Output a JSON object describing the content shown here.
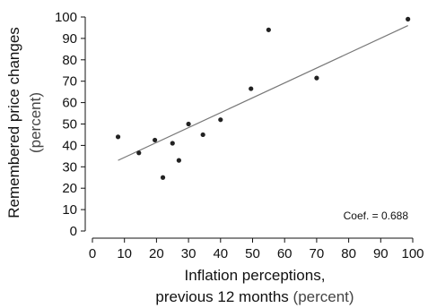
{
  "chart_data": {
    "type": "scatter",
    "xlabel": "Inflation perceptions,",
    "xlabel_line2": "previous 12 months",
    "xlabel_unit": "(percent)",
    "ylabel": "Remembered price changes",
    "ylabel_unit": "(percent)",
    "xlim": [
      0,
      100
    ],
    "ylim": [
      0,
      100
    ],
    "x_ticks": [
      0,
      10,
      20,
      30,
      40,
      50,
      60,
      70,
      80,
      90,
      100
    ],
    "y_ticks": [
      0,
      10,
      20,
      30,
      40,
      50,
      60,
      70,
      80,
      90,
      100
    ],
    "grid": false,
    "annotation": "Coef. = 0.688",
    "points": [
      {
        "x": 8,
        "y": 44
      },
      {
        "x": 14.5,
        "y": 36.5
      },
      {
        "x": 19.5,
        "y": 42.5
      },
      {
        "x": 22,
        "y": 25
      },
      {
        "x": 25,
        "y": 41
      },
      {
        "x": 27,
        "y": 33
      },
      {
        "x": 30,
        "y": 50
      },
      {
        "x": 34.5,
        "y": 45
      },
      {
        "x": 40,
        "y": 52
      },
      {
        "x": 49.5,
        "y": 66.5
      },
      {
        "x": 55,
        "y": 94
      },
      {
        "x": 70,
        "y": 71.5
      },
      {
        "x": 98.5,
        "y": 99
      }
    ],
    "fit_line": {
      "x": [
        8,
        98.5
      ],
      "y": [
        33,
        96
      ]
    },
    "colors": {
      "points": "#222222",
      "fit_line": "#777777",
      "axis": "#111111"
    }
  }
}
